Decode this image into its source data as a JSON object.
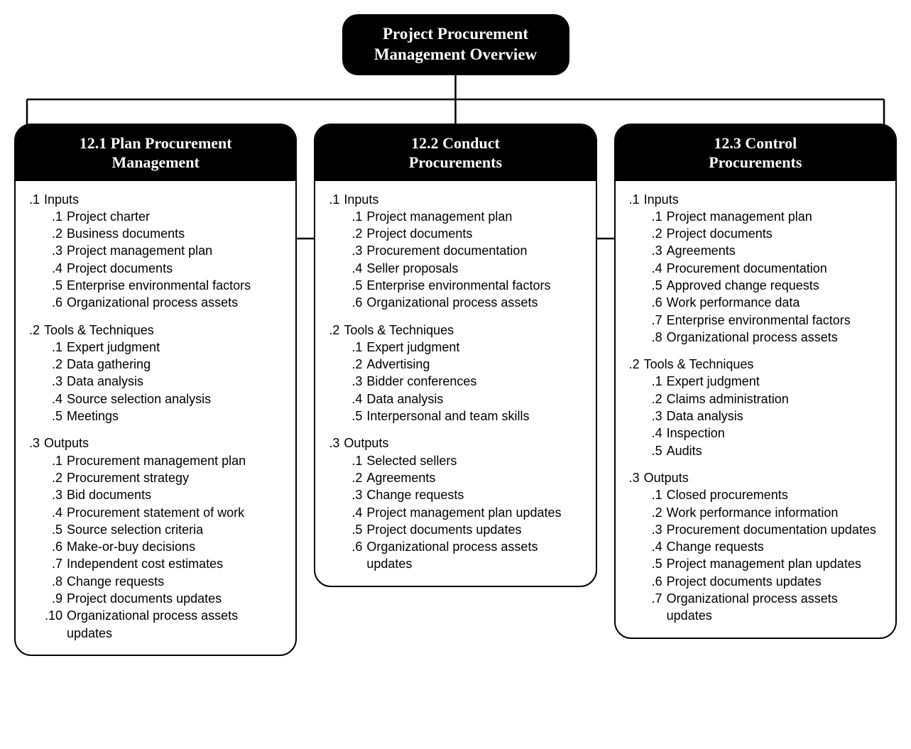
{
  "diagram": {
    "type": "tree",
    "background_color": "#ffffff",
    "border_color": "#000000",
    "border_width": 2.5,
    "border_radius": 24,
    "connector_color": "#000000",
    "connector_width": 2.5,
    "header_bg": "#000000",
    "header_text_color": "#ffffff",
    "header_font_family": "Georgia, serif",
    "header_font_size_pt": 17,
    "body_font_family": "Arial, sans-serif",
    "body_font_size_pt": 13,
    "root": {
      "title_line1": "Project Procurement",
      "title_line2": "Management Overview"
    },
    "boxes": [
      {
        "header_line1": "12.1 Plan Procurement",
        "header_line2": "Management",
        "sections": [
          {
            "num": ".1",
            "label": "Inputs",
            "items": [
              {
                "n": ".1",
                "t": "Project charter"
              },
              {
                "n": ".2",
                "t": "Business documents"
              },
              {
                "n": ".3",
                "t": "Project management plan"
              },
              {
                "n": ".4",
                "t": "Project documents"
              },
              {
                "n": ".5",
                "t": "Enterprise environmental factors"
              },
              {
                "n": ".6",
                "t": "Organizational process assets"
              }
            ]
          },
          {
            "num": ".2",
            "label": "Tools & Techniques",
            "items": [
              {
                "n": ".1",
                "t": "Expert judgment"
              },
              {
                "n": ".2",
                "t": "Data gathering"
              },
              {
                "n": ".3",
                "t": "Data analysis"
              },
              {
                "n": ".4",
                "t": "Source selection analysis"
              },
              {
                "n": ".5",
                "t": "Meetings"
              }
            ]
          },
          {
            "num": ".3",
            "label": "Outputs",
            "items": [
              {
                "n": ".1",
                "t": "Procurement management plan"
              },
              {
                "n": ".2",
                "t": "Procurement strategy"
              },
              {
                "n": ".3",
                "t": "Bid documents"
              },
              {
                "n": ".4",
                "t": "Procurement statement of work"
              },
              {
                "n": ".5",
                "t": "Source selection criteria"
              },
              {
                "n": ".6",
                "t": "Make-or-buy decisions"
              },
              {
                "n": ".7",
                "t": "Independent cost estimates"
              },
              {
                "n": ".8",
                "t": "Change requests"
              },
              {
                "n": ".9",
                "t": "Project documents updates"
              },
              {
                "n": ".10",
                "t": "Organizational process assets updates"
              }
            ]
          }
        ]
      },
      {
        "header_line1": "12.2 Conduct",
        "header_line2": "Procurements",
        "sections": [
          {
            "num": ".1",
            "label": "Inputs",
            "items": [
              {
                "n": ".1",
                "t": "Project management plan"
              },
              {
                "n": ".2",
                "t": "Project documents"
              },
              {
                "n": ".3",
                "t": "Procurement documentation"
              },
              {
                "n": ".4",
                "t": "Seller proposals"
              },
              {
                "n": ".5",
                "t": "Enterprise environmental factors"
              },
              {
                "n": ".6",
                "t": "Organizational process assets"
              }
            ]
          },
          {
            "num": ".2",
            "label": "Tools & Techniques",
            "items": [
              {
                "n": ".1",
                "t": "Expert judgment"
              },
              {
                "n": ".2",
                "t": "Advertising"
              },
              {
                "n": ".3",
                "t": "Bidder conferences"
              },
              {
                "n": ".4",
                "t": "Data analysis"
              },
              {
                "n": ".5",
                "t": "Interpersonal and team skills"
              }
            ]
          },
          {
            "num": ".3",
            "label": "Outputs",
            "items": [
              {
                "n": ".1",
                "t": "Selected sellers"
              },
              {
                "n": ".2",
                "t": "Agreements"
              },
              {
                "n": ".3",
                "t": "Change requests"
              },
              {
                "n": ".4",
                "t": "Project management plan updates"
              },
              {
                "n": ".5",
                "t": "Project documents updates"
              },
              {
                "n": ".6",
                "t": "Organizational process assets updates"
              }
            ]
          }
        ]
      },
      {
        "header_line1": "12.3 Control",
        "header_line2": "Procurements",
        "sections": [
          {
            "num": ".1",
            "label": "Inputs",
            "items": [
              {
                "n": ".1",
                "t": "Project management plan"
              },
              {
                "n": ".2",
                "t": "Project documents"
              },
              {
                "n": ".3",
                "t": "Agreements"
              },
              {
                "n": ".4",
                "t": "Procurement documentation"
              },
              {
                "n": ".5",
                "t": "Approved change requests"
              },
              {
                "n": ".6",
                "t": "Work performance data"
              },
              {
                "n": ".7",
                "t": "Enterprise environmental factors"
              },
              {
                "n": ".8",
                "t": "Organizational process assets"
              }
            ]
          },
          {
            "num": ".2",
            "label": "Tools & Techniques",
            "items": [
              {
                "n": ".1",
                "t": "Expert judgment"
              },
              {
                "n": ".2",
                "t": "Claims administration"
              },
              {
                "n": ".3",
                "t": "Data analysis"
              },
              {
                "n": ".4",
                "t": "Inspection"
              },
              {
                "n": ".5",
                "t": "Audits"
              }
            ]
          },
          {
            "num": ".3",
            "label": "Outputs",
            "items": [
              {
                "n": ".1",
                "t": "Closed procurements"
              },
              {
                "n": ".2",
                "t": "Work performance information"
              },
              {
                "n": ".3",
                "t": "Procurement documentation updates"
              },
              {
                "n": ".4",
                "t": "Change requests"
              },
              {
                "n": ".5",
                "t": "Project management plan updates"
              },
              {
                "n": ".6",
                "t": "Project documents updates"
              },
              {
                "n": ".7",
                "t": "Organizational process assets updates"
              }
            ]
          }
        ]
      }
    ]
  }
}
